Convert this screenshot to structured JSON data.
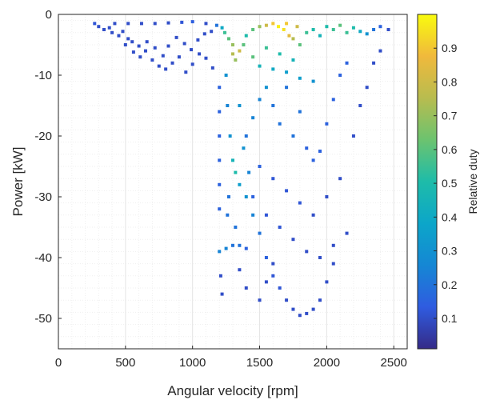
{
  "chart_data": {
    "type": "scatter",
    "title": "",
    "xlabel": "Angular velocity [rpm]",
    "ylabel": "Power [kW]",
    "xlim": [
      0,
      2600
    ],
    "ylim": [
      -55,
      0
    ],
    "xticks": [
      0,
      500,
      1000,
      1500,
      2000,
      2500
    ],
    "xtick_labels": [
      "0",
      "500",
      "1000",
      "1500",
      "2000",
      "2500"
    ],
    "yticks": [
      0,
      -10,
      -20,
      -30,
      -40,
      -50
    ],
    "ytick_labels": [
      "0",
      "-10",
      "-20",
      "-30",
      "-40",
      "-50"
    ],
    "grid": true,
    "minor_grid": true,
    "marker": "square",
    "colorbar": {
      "label": "Relative duty",
      "range": [
        0.01,
        1.0
      ],
      "colormap": "parula",
      "ticks": [
        0.1,
        0.2,
        0.3,
        0.4,
        0.5,
        0.6,
        0.7,
        0.8,
        0.9
      ],
      "tick_labels": [
        "0.1",
        "0.2",
        "0.3",
        "0.4",
        "0.5",
        "0.6",
        "0.7",
        "0.8",
        "0.9"
      ]
    },
    "points": [
      [
        270,
        -1.5,
        0.12
      ],
      [
        300,
        -2.0,
        0.1
      ],
      [
        340,
        -2.5,
        0.1
      ],
      [
        380,
        -2.2,
        0.1
      ],
      [
        400,
        -3.0,
        0.1
      ],
      [
        450,
        -3.5,
        0.1
      ],
      [
        480,
        -2.8,
        0.1
      ],
      [
        520,
        -4.0,
        0.1
      ],
      [
        550,
        -4.5,
        0.1
      ],
      [
        600,
        -5.2,
        0.1
      ],
      [
        650,
        -6.0,
        0.1
      ],
      [
        700,
        -7.5,
        0.1
      ],
      [
        750,
        -8.5,
        0.1
      ],
      [
        800,
        -9.0,
        0.1
      ],
      [
        850,
        -8.0,
        0.1
      ],
      [
        900,
        -7.0,
        0.1
      ],
      [
        950,
        -9.5,
        0.1
      ],
      [
        1000,
        -8.2,
        0.1
      ],
      [
        1050,
        -6.5,
        0.1
      ],
      [
        1100,
        -7.2,
        0.1
      ],
      [
        1150,
        -8.8,
        0.1
      ],
      [
        500,
        -5.0,
        0.1
      ],
      [
        560,
        -6.2,
        0.1
      ],
      [
        610,
        -7.0,
        0.1
      ],
      [
        660,
        -4.5,
        0.1
      ],
      [
        720,
        -5.5,
        0.1
      ],
      [
        780,
        -6.8,
        0.1
      ],
      [
        820,
        -5.2,
        0.1
      ],
      [
        880,
        -3.8,
        0.1
      ],
      [
        940,
        -4.8,
        0.1
      ],
      [
        990,
        -5.8,
        0.1
      ],
      [
        1040,
        -4.2,
        0.1
      ],
      [
        1090,
        -3.2,
        0.1
      ],
      [
        1140,
        -2.8,
        0.1
      ],
      [
        420,
        -1.5,
        0.1
      ],
      [
        520,
        -1.5,
        0.1
      ],
      [
        620,
        -1.5,
        0.1
      ],
      [
        720,
        -1.5,
        0.1
      ],
      [
        820,
        -1.4,
        0.1
      ],
      [
        920,
        -1.3,
        0.12
      ],
      [
        1000,
        -1.2,
        0.14
      ],
      [
        1100,
        -1.5,
        0.1
      ],
      [
        1180,
        -1.8,
        0.2
      ],
      [
        1220,
        -2.2,
        0.4
      ],
      [
        1240,
        -3.0,
        0.55
      ],
      [
        1270,
        -4.0,
        0.6
      ],
      [
        1300,
        -5.0,
        0.7
      ],
      [
        1300,
        -6.5,
        0.75
      ],
      [
        1320,
        -7.5,
        0.7
      ],
      [
        1350,
        -6.0,
        0.8
      ],
      [
        1380,
        -5.0,
        0.6
      ],
      [
        1400,
        -3.5,
        0.5
      ],
      [
        1450,
        -2.5,
        0.6
      ],
      [
        1500,
        -2.0,
        0.7
      ],
      [
        1550,
        -1.8,
        0.8
      ],
      [
        1600,
        -1.5,
        0.9
      ],
      [
        1640,
        -2.0,
        0.98
      ],
      [
        1680,
        -2.5,
        0.95
      ],
      [
        1700,
        -1.5,
        0.9
      ],
      [
        1720,
        -3.5,
        0.85
      ],
      [
        1750,
        -4.0,
        0.75
      ],
      [
        1780,
        -2.0,
        0.8
      ],
      [
        1800,
        -5.0,
        0.6
      ],
      [
        1850,
        -3.0,
        0.55
      ],
      [
        1900,
        -2.5,
        0.5
      ],
      [
        1950,
        -3.5,
        0.45
      ],
      [
        2000,
        -2.0,
        0.5
      ],
      [
        2050,
        -2.5,
        0.55
      ],
      [
        2100,
        -1.8,
        0.6
      ],
      [
        2150,
        -3.0,
        0.55
      ],
      [
        2200,
        -2.2,
        0.5
      ],
      [
        2250,
        -2.8,
        0.4
      ],
      [
        2300,
        -3.2,
        0.3
      ],
      [
        2350,
        -2.5,
        0.2
      ],
      [
        2400,
        -2.0,
        0.15
      ],
      [
        2460,
        -2.5,
        0.1
      ],
      [
        1550,
        -5.5,
        0.55
      ],
      [
        1650,
        -6.5,
        0.5
      ],
      [
        1750,
        -7.5,
        0.45
      ],
      [
        1450,
        -7.0,
        0.6
      ],
      [
        1500,
        -8.5,
        0.45
      ],
      [
        1600,
        -9.0,
        0.4
      ],
      [
        1700,
        -9.5,
        0.35
      ],
      [
        1800,
        -10.5,
        0.35
      ],
      [
        1900,
        -11.0,
        0.3
      ],
      [
        1250,
        -10,
        0.3
      ],
      [
        1260,
        -15,
        0.25
      ],
      [
        1280,
        -20,
        0.3
      ],
      [
        1300,
        -24,
        0.45
      ],
      [
        1320,
        -26,
        0.5
      ],
      [
        1350,
        -28,
        0.35
      ],
      [
        1400,
        -30,
        0.3
      ],
      [
        1450,
        -33,
        0.25
      ],
      [
        1500,
        -36,
        0.2
      ],
      [
        1550,
        -40,
        0.15
      ],
      [
        1600,
        -43,
        0.12
      ],
      [
        1650,
        -45,
        0.12
      ],
      [
        1700,
        -47,
        0.1
      ],
      [
        1750,
        -48.5,
        0.1
      ],
      [
        1800,
        -49.5,
        0.1
      ],
      [
        1850,
        -49.2,
        0.1
      ],
      [
        1900,
        -48.5,
        0.1
      ],
      [
        1950,
        -47,
        0.1
      ],
      [
        2000,
        -44,
        0.1
      ],
      [
        2050,
        -41,
        0.1
      ],
      [
        1200,
        -39,
        0.25
      ],
      [
        1250,
        -38.5,
        0.25
      ],
      [
        1300,
        -38,
        0.2
      ],
      [
        1350,
        -38,
        0.2
      ],
      [
        1400,
        -38.5,
        0.15
      ],
      [
        1200,
        -32,
        0.15
      ],
      [
        1200,
        -28,
        0.15
      ],
      [
        1200,
        -24,
        0.15
      ],
      [
        1200,
        -20,
        0.15
      ],
      [
        1200,
        -16,
        0.15
      ],
      [
        1200,
        -12,
        0.15
      ],
      [
        1210,
        -43,
        0.1
      ],
      [
        1220,
        -46,
        0.1
      ],
      [
        1260,
        -33,
        0.2
      ],
      [
        1270,
        -30,
        0.2
      ],
      [
        1400,
        -20,
        0.2
      ],
      [
        1450,
        -17,
        0.25
      ],
      [
        1500,
        -14,
        0.25
      ],
      [
        1550,
        -12,
        0.3
      ],
      [
        1600,
        -15,
        0.2
      ],
      [
        1650,
        -18,
        0.2
      ],
      [
        1700,
        -12,
        0.2
      ],
      [
        1750,
        -20,
        0.2
      ],
      [
        1800,
        -16,
        0.2
      ],
      [
        1850,
        -22,
        0.15
      ],
      [
        1900,
        -24,
        0.15
      ],
      [
        1950,
        -22.5,
        0.15
      ],
      [
        2000,
        -18,
        0.15
      ],
      [
        2050,
        -14,
        0.15
      ],
      [
        2100,
        -10,
        0.15
      ],
      [
        2150,
        -8,
        0.15
      ],
      [
        1500,
        -25,
        0.15
      ],
      [
        1600,
        -27,
        0.12
      ],
      [
        1700,
        -29,
        0.12
      ],
      [
        1800,
        -31,
        0.12
      ],
      [
        1900,
        -33,
        0.1
      ],
      [
        2000,
        -30,
        0.1
      ],
      [
        2100,
        -27,
        0.1
      ],
      [
        1450,
        -30,
        0.15
      ],
      [
        1550,
        -33,
        0.12
      ],
      [
        1650,
        -35,
        0.12
      ],
      [
        1750,
        -37,
        0.1
      ],
      [
        1850,
        -39,
        0.1
      ],
      [
        1950,
        -40,
        0.1
      ],
      [
        2050,
        -38,
        0.1
      ],
      [
        2150,
        -36,
        0.1
      ],
      [
        2200,
        -20,
        0.1
      ],
      [
        2250,
        -15,
        0.1
      ],
      [
        2300,
        -12,
        0.1
      ],
      [
        2350,
        -8,
        0.1
      ],
      [
        2400,
        -6,
        0.1
      ],
      [
        1350,
        -15,
        0.3
      ],
      [
        1380,
        -22,
        0.3
      ],
      [
        1420,
        -26,
        0.25
      ],
      [
        1320,
        -35,
        0.2
      ],
      [
        1350,
        -42,
        0.1
      ],
      [
        1400,
        -45,
        0.1
      ],
      [
        1500,
        -47,
        0.1
      ],
      [
        1550,
        -44,
        0.1
      ],
      [
        1600,
        -41,
        0.1
      ]
    ]
  }
}
